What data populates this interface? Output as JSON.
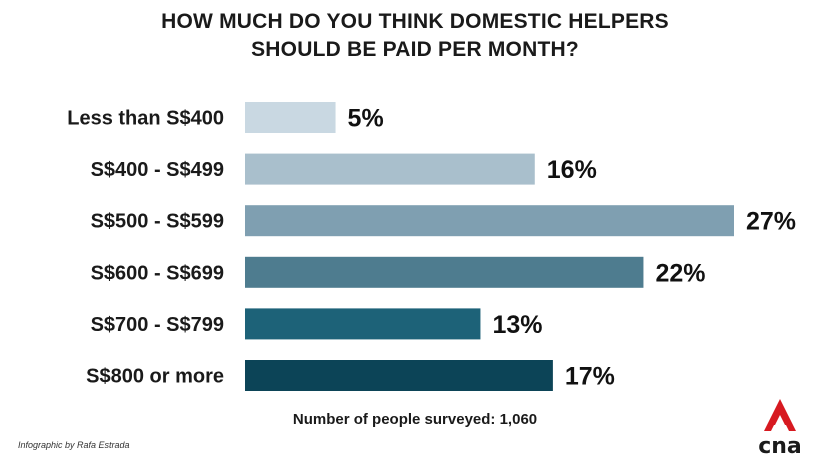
{
  "chart_data": {
    "type": "bar",
    "orientation": "horizontal",
    "title_lines": [
      "HOW MUCH DO YOU THINK DOMESTIC HELPERS",
      "SHOULD BE PAID PER MONTH?"
    ],
    "categories": [
      "Less than S$400",
      "S$400 - S$499",
      "S$500 - S$599",
      "S$600 - S$699",
      "S$700 - S$799",
      "S$800 or more"
    ],
    "values": [
      5,
      16,
      27,
      22,
      13,
      17
    ],
    "value_labels": [
      "5%",
      "16%",
      "27%",
      "22%",
      "13%",
      "17%"
    ],
    "colors": [
      "#c9d8e2",
      "#a9bfcc",
      "#7f9fb1",
      "#4e7c8f",
      "#1d6278",
      "#0c4457"
    ],
    "xlim": [
      0,
      27
    ],
    "grid": false,
    "legend": "none"
  },
  "footnote": "Number of people surveyed: 1,060",
  "credit": "Infographic by Rafa Estrada",
  "logo": {
    "icon": "cna-logo-icon",
    "text": "cna",
    "accent": "#d71920"
  }
}
